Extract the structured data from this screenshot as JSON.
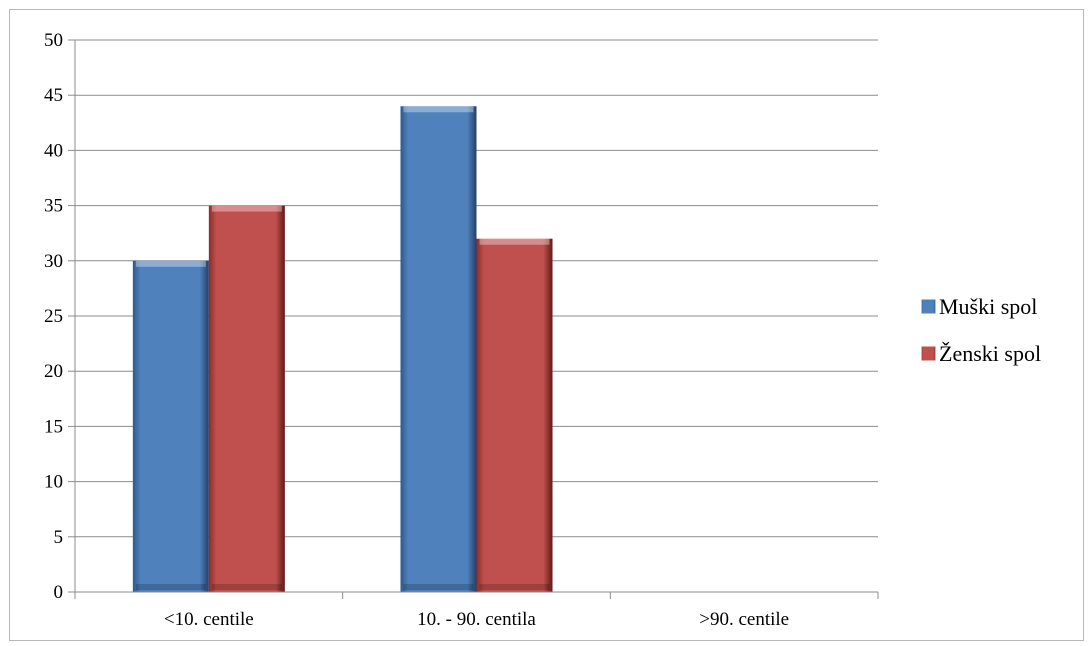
{
  "chart_data": {
    "type": "bar",
    "title": "",
    "xlabel": "",
    "ylabel": "",
    "categories": [
      "<10. centile",
      "10. - 90. centila",
      ">90. centile"
    ],
    "series": [
      {
        "name": "Muški spol",
        "values": [
          30,
          44,
          0
        ],
        "color": "#4f81bd"
      },
      {
        "name": "Ženski spol",
        "values": [
          35,
          32,
          0
        ],
        "color": "#c0504d"
      }
    ],
    "ylim": [
      0,
      50
    ],
    "yticks": [
      0,
      5,
      10,
      15,
      20,
      25,
      30,
      35,
      40,
      45,
      50
    ],
    "grid": true,
    "legend_position": "right"
  }
}
